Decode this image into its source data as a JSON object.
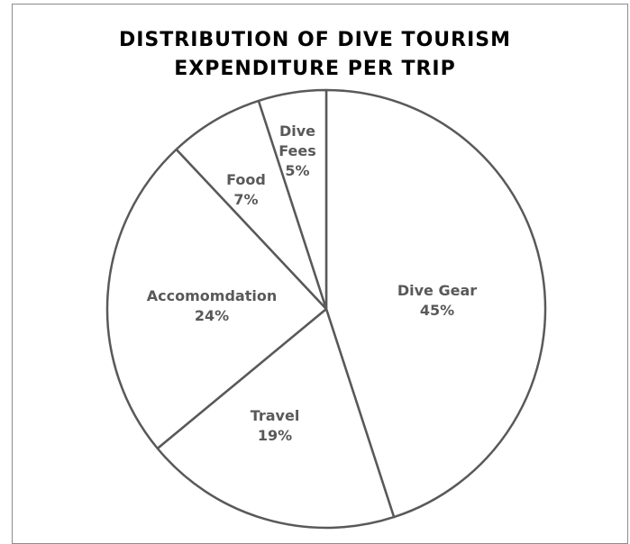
{
  "chart_data": {
    "type": "pie",
    "title_lines": [
      "DISTRIBUTION OF DIVE TOURISM",
      "EXPENDITURE PER TRIP"
    ],
    "slices": [
      {
        "label": "Dive Gear",
        "value": 45,
        "value_label": "45%"
      },
      {
        "label": "Travel",
        "value": 19,
        "value_label": "19%"
      },
      {
        "label": "Accomomdation",
        "value": 24,
        "value_label": "24%"
      },
      {
        "label": "Food",
        "value": 7,
        "value_label": "7%"
      },
      {
        "label": "Dive Fees",
        "value": 5,
        "value_label": "5%"
      }
    ],
    "start_angle": "12 o'clock",
    "direction": "clockwise",
    "colors": {
      "fill": "#ffffff",
      "stroke": "#595959",
      "label": "#595959"
    }
  }
}
